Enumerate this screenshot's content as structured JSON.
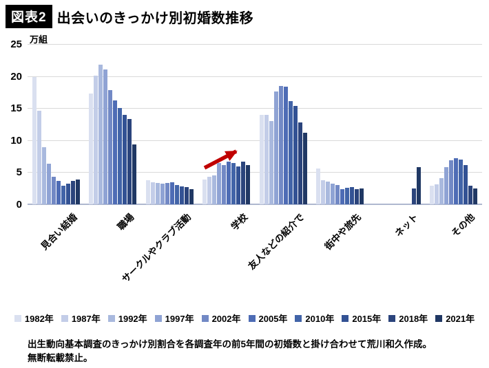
{
  "header": {
    "badge": "図表2",
    "title": "出会いのきっかけ別初婚数推移"
  },
  "chart_data": {
    "type": "bar",
    "title": "出会いのきっかけ別初婚数推移",
    "unit_label": "万組",
    "ylim": [
      0,
      25
    ],
    "yticks": [
      0,
      5,
      10,
      15,
      20,
      25
    ],
    "grid": true,
    "legend_position": "bottom",
    "categories": [
      "見合い結婚",
      "職場",
      "サークルやクラブ活動",
      "学校",
      "友人などの紹介で",
      "街中や旅先",
      "ネット",
      "その他"
    ],
    "series": [
      {
        "name": "1982年",
        "color": "#dae0f0",
        "values": [
          19.9,
          17.3,
          3.8,
          3.9,
          14.0,
          5.6,
          0,
          2.9
        ]
      },
      {
        "name": "1987年",
        "color": "#c3cde8",
        "values": [
          14.6,
          20.1,
          3.4,
          4.3,
          13.9,
          3.8,
          0,
          3.1
        ]
      },
      {
        "name": "1992年",
        "color": "#a9b9de",
        "values": [
          8.9,
          21.8,
          3.3,
          4.5,
          13.0,
          3.5,
          0,
          4.1
        ]
      },
      {
        "name": "1997年",
        "color": "#8fa3d4",
        "values": [
          6.3,
          21.0,
          3.2,
          6.4,
          17.6,
          3.2,
          0,
          5.8
        ]
      },
      {
        "name": "2002年",
        "color": "#7289c5",
        "values": [
          4.3,
          17.8,
          3.3,
          6.1,
          18.5,
          3.0,
          0,
          6.9
        ]
      },
      {
        "name": "2005年",
        "color": "#4e6cb5",
        "values": [
          3.6,
          16.2,
          3.4,
          6.6,
          18.3,
          2.4,
          0,
          7.2
        ]
      },
      {
        "name": "2010年",
        "color": "#4264a8",
        "values": [
          2.9,
          15.0,
          3.0,
          6.4,
          16.1,
          2.6,
          0,
          7.0
        ]
      },
      {
        "name": "2015年",
        "color": "#335294",
        "values": [
          3.2,
          13.9,
          2.8,
          5.9,
          15.3,
          2.7,
          0,
          6.1
        ]
      },
      {
        "name": "2018年",
        "color": "#2b447c",
        "values": [
          3.7,
          13.3,
          2.7,
          6.6,
          12.8,
          2.4,
          2.5,
          2.9
        ]
      },
      {
        "name": "2021年",
        "color": "#203864",
        "values": [
          3.9,
          9.3,
          2.4,
          6.1,
          11.2,
          2.5,
          5.8,
          2.5
        ]
      }
    ],
    "annotation_arrow": {
      "color": "#c00000",
      "target_category": "学校",
      "direction": "up-right"
    }
  },
  "footer": {
    "line1": "出生動向基本調査のきっかけ別割合を各調査年の前5年間の初婚数と掛け合わせて荒川和久作成。",
    "line2": "無断転載禁止。"
  }
}
